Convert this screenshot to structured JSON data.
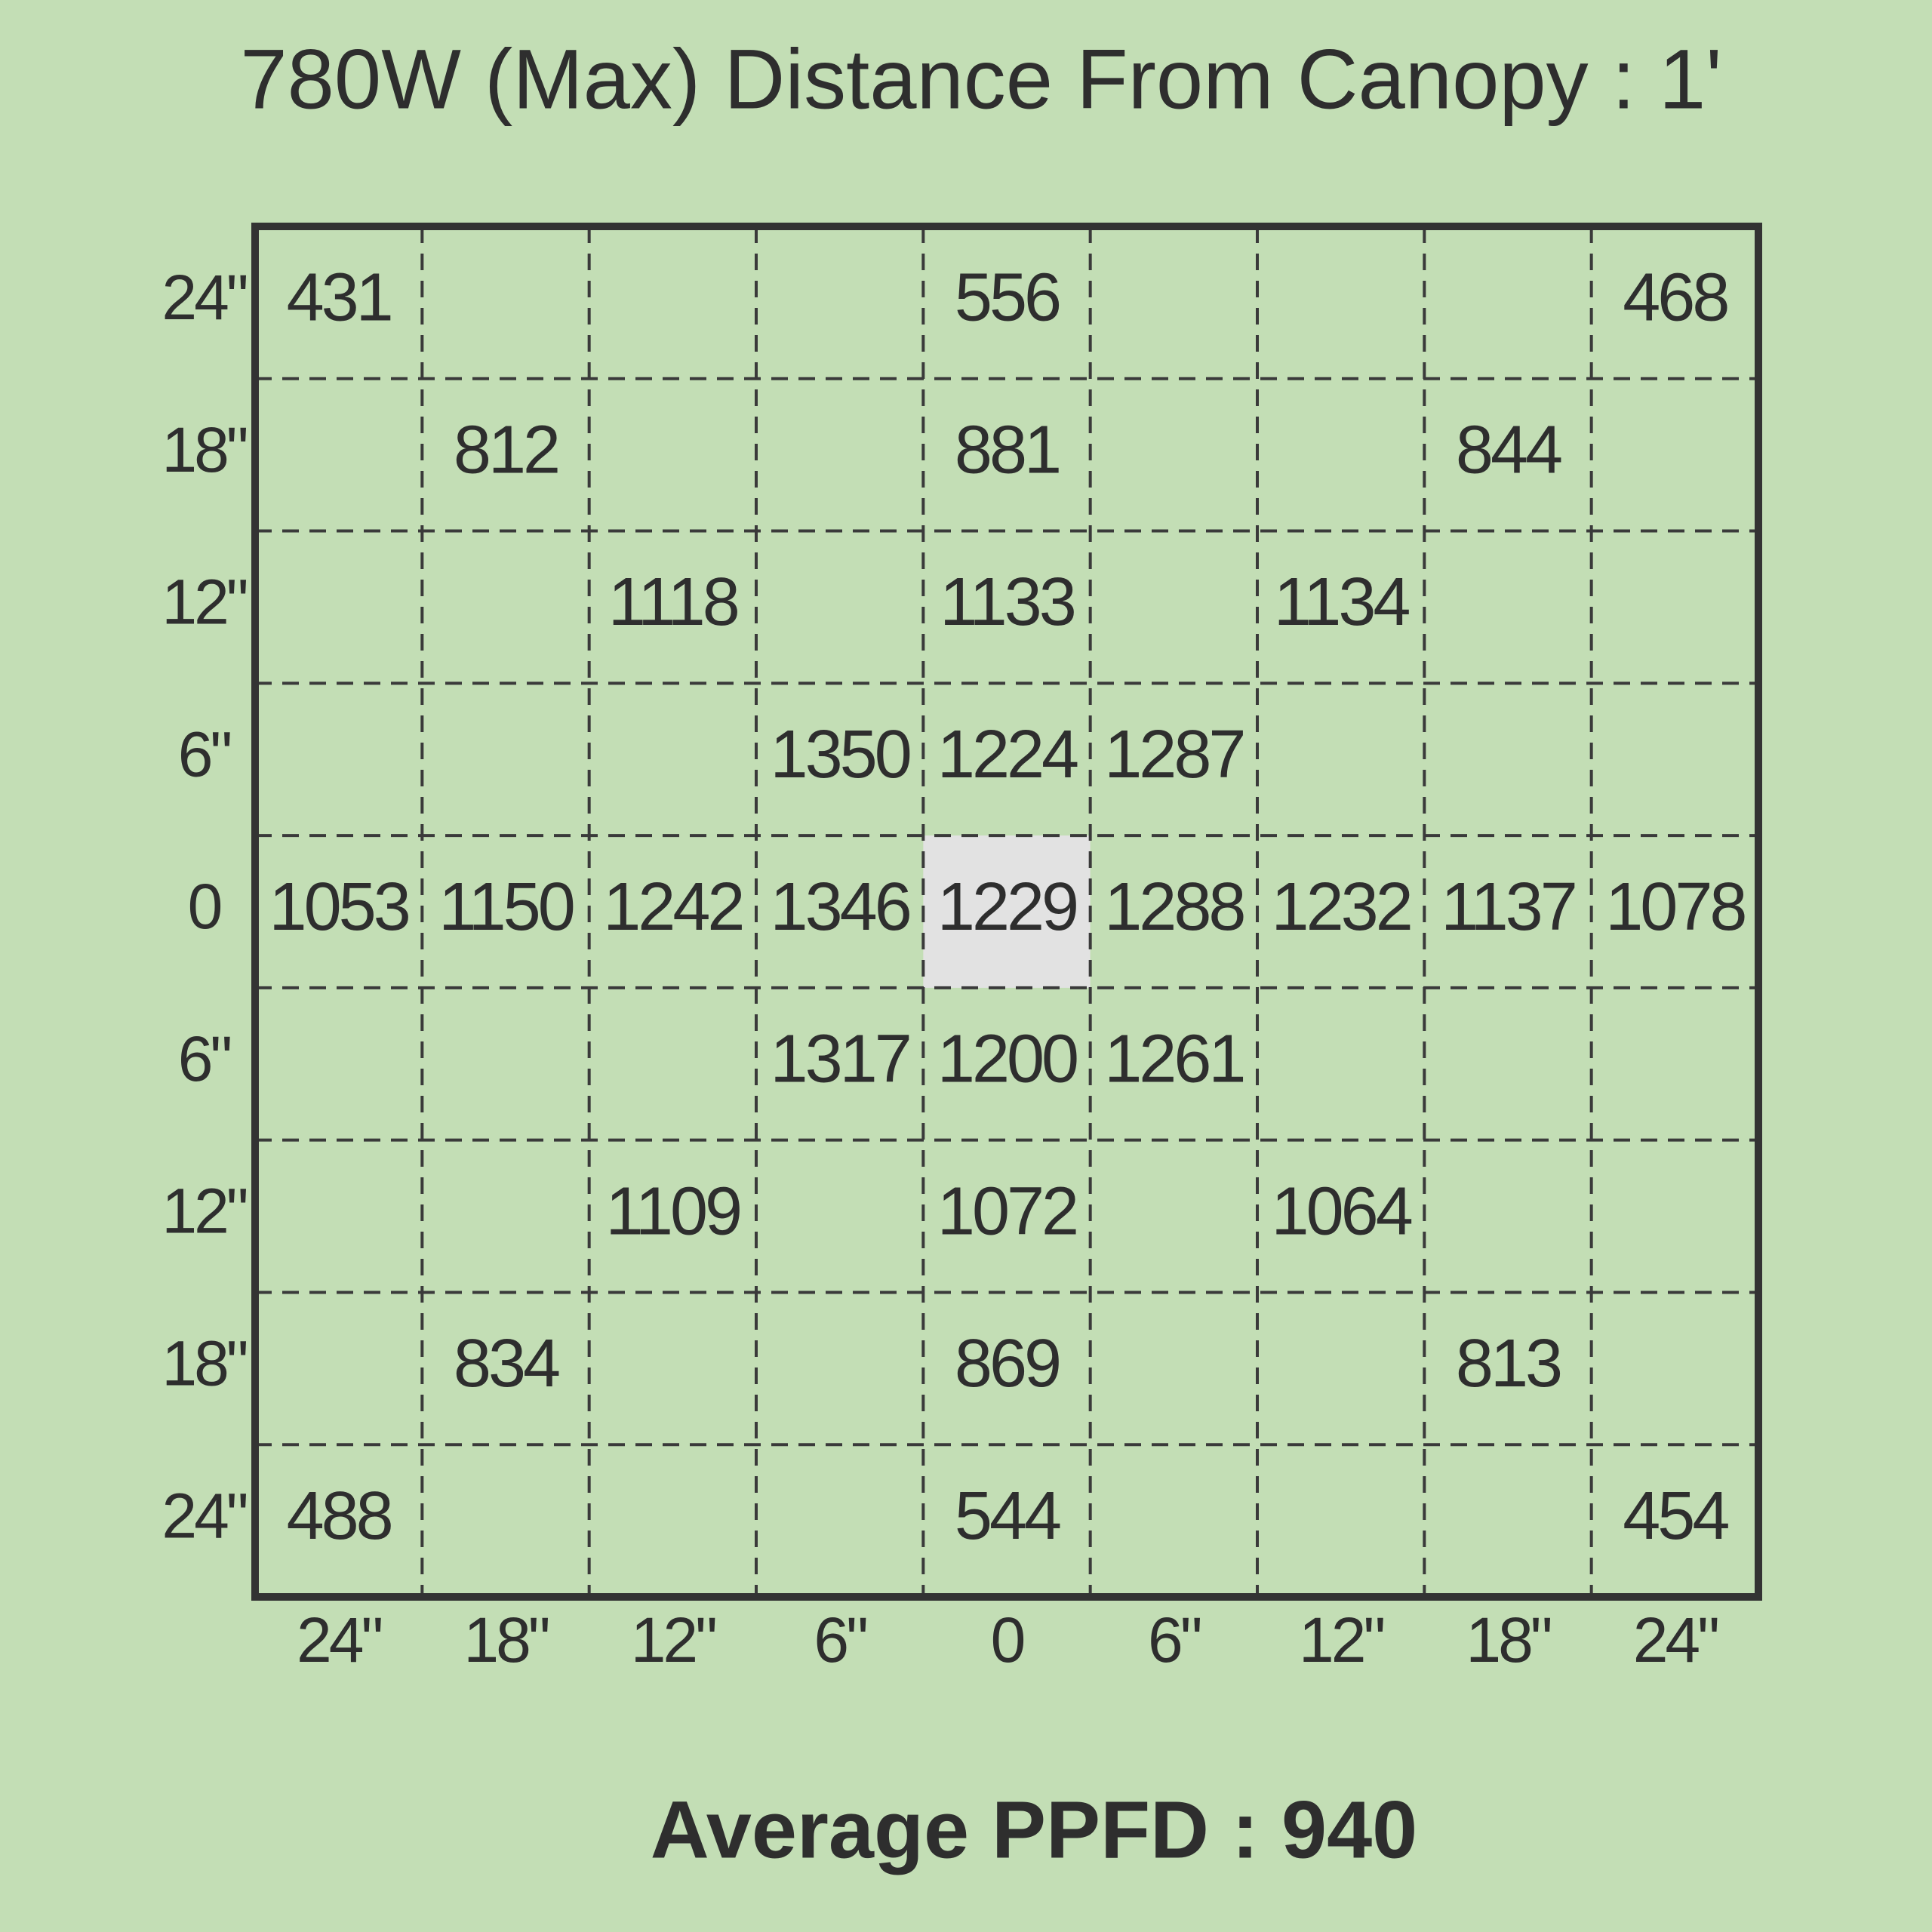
{
  "title": "780W (Max) Distance From Canopy : 1'",
  "table": {
    "row_labels": [
      "24\"",
      "18\"",
      "12\"",
      "6\"",
      "0",
      "6\"",
      "12\"",
      "18\"",
      "24\""
    ],
    "col_labels": [
      "24\"",
      "18\"",
      "12\"",
      "6\"",
      "0",
      "6\"",
      "12\"",
      "18\"",
      "24\""
    ],
    "highlight": [
      4,
      4
    ],
    "rows": [
      [
        "431",
        null,
        null,
        null,
        "556",
        null,
        null,
        null,
        "468"
      ],
      [
        null,
        "812",
        null,
        null,
        "881",
        null,
        null,
        "844",
        null
      ],
      [
        null,
        null,
        "1118",
        null,
        "1133",
        null,
        "1134",
        null,
        null
      ],
      [
        null,
        null,
        null,
        "1350",
        "1224",
        "1287",
        null,
        null,
        null
      ],
      [
        "1053",
        "1150",
        "1242",
        "1346",
        "1229",
        "1288",
        "1232",
        "1137",
        "1078"
      ],
      [
        null,
        null,
        null,
        "1317",
        "1200",
        "1261",
        null,
        null,
        null
      ],
      [
        null,
        null,
        "1109",
        null,
        "1072",
        null,
        "1064",
        null,
        null
      ],
      [
        null,
        "834",
        null,
        null,
        "869",
        null,
        null,
        "813",
        null
      ],
      [
        "488",
        null,
        null,
        null,
        "544",
        null,
        null,
        null,
        "454"
      ]
    ]
  },
  "footer": "Average PPFD : 940"
}
